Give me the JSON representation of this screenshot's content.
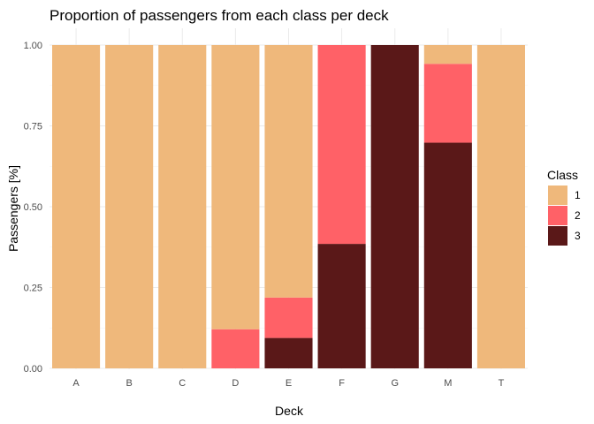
{
  "chart_data": {
    "type": "bar",
    "stacked": true,
    "title": "Proportion of passengers from each class per deck",
    "xlabel": "Deck",
    "ylabel": "Passengers [%]",
    "ylim": [
      0,
      1
    ],
    "yticks": [
      "0.00",
      "0.25",
      "0.50",
      "0.75",
      "1.00"
    ],
    "grid": true,
    "legend": {
      "title": "Class",
      "position": "right"
    },
    "categories": [
      "A",
      "B",
      "C",
      "D",
      "E",
      "F",
      "G",
      "M",
      "T"
    ],
    "series": [
      {
        "name": "3",
        "color": "#5a1818",
        "values": [
          0,
          0,
          0,
          0,
          0.094,
          0.385,
          1.0,
          0.698,
          0
        ]
      },
      {
        "name": "2",
        "color": "#ff6167",
        "values": [
          0,
          0,
          0,
          0.121,
          0.125,
          0.615,
          0,
          0.244,
          0
        ]
      },
      {
        "name": "1",
        "color": "#efb87b",
        "values": [
          1.0,
          1.0,
          1.0,
          0.879,
          0.781,
          0,
          0,
          0.058,
          1.0
        ]
      }
    ],
    "legend_order": [
      "1",
      "2",
      "3"
    ]
  }
}
